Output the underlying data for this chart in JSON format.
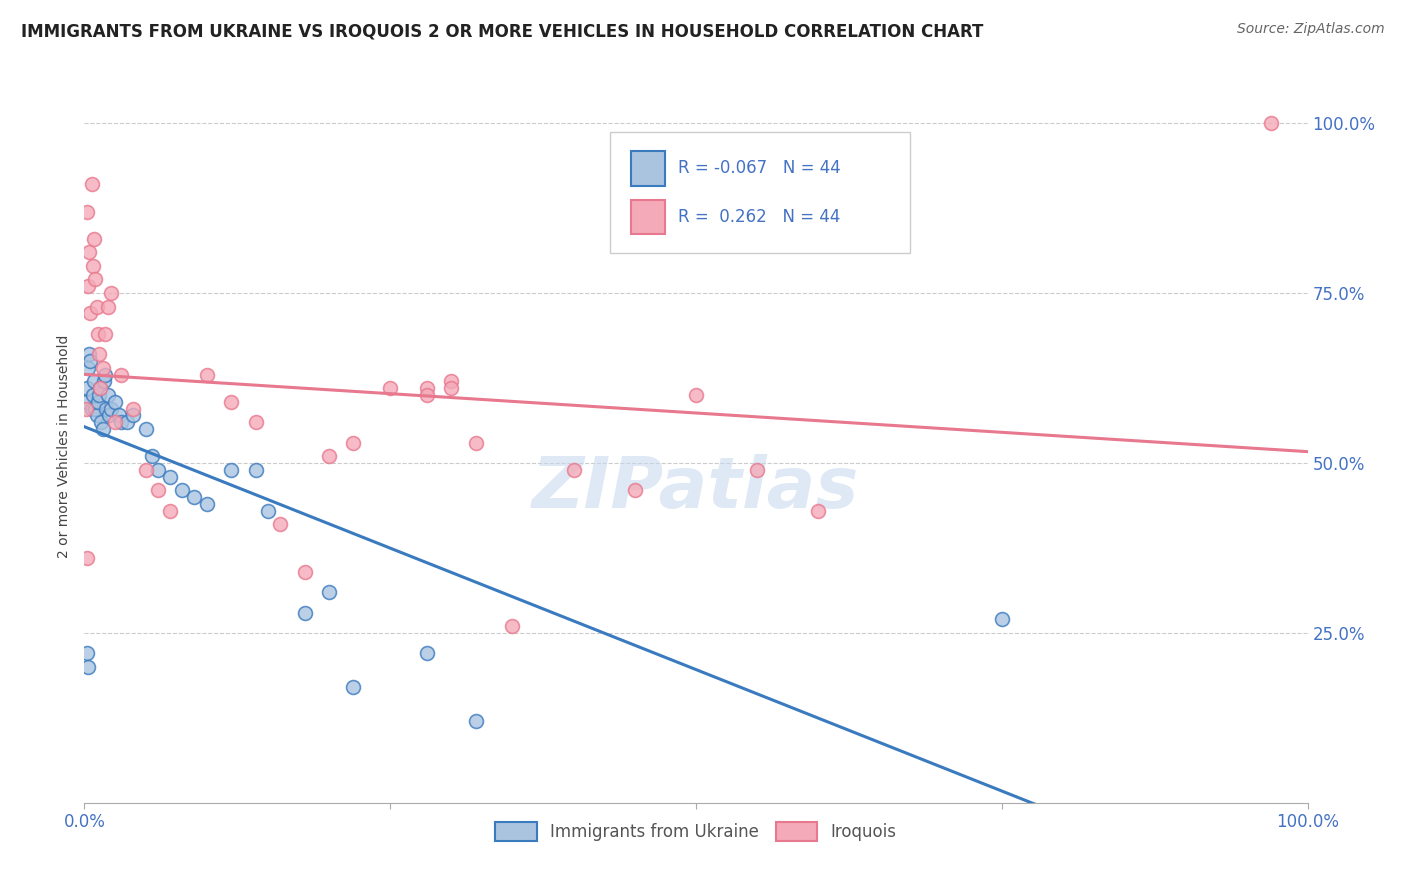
{
  "title": "IMMIGRANTS FROM UKRAINE VS IROQUOIS 2 OR MORE VEHICLES IN HOUSEHOLD CORRELATION CHART",
  "source": "Source: ZipAtlas.com",
  "ylabel": "2 or more Vehicles in Household",
  "watermark": "ZIPatlas",
  "legend_ukraine": "Immigrants from Ukraine",
  "legend_iroquois": "Iroquois",
  "R_ukraine": -0.067,
  "N_ukraine": 44,
  "R_iroquois": 0.262,
  "N_iroquois": 44,
  "ukraine_color": "#aac4e0",
  "iroquois_color": "#f4aab8",
  "ukraine_line_color": "#3a7abf",
  "iroquois_line_color": "#e8788e",
  "ukraine_scatter_x": [
    0.001,
    0.002,
    0.003,
    0.004,
    0.005,
    0.006,
    0.007,
    0.008,
    0.009,
    0.01,
    0.011,
    0.012,
    0.013,
    0.014,
    0.015,
    0.016,
    0.017,
    0.018,
    0.019,
    0.02,
    0.022,
    0.025,
    0.028,
    0.03,
    0.035,
    0.04,
    0.05,
    0.055,
    0.06,
    0.07,
    0.08,
    0.09,
    0.1,
    0.12,
    0.14,
    0.15,
    0.18,
    0.2,
    0.22,
    0.28,
    0.32,
    0.75,
    0.002,
    0.003
  ],
  "ukraine_scatter_y": [
    0.59,
    0.61,
    0.64,
    0.66,
    0.65,
    0.58,
    0.6,
    0.62,
    0.58,
    0.57,
    0.59,
    0.6,
    0.61,
    0.56,
    0.55,
    0.62,
    0.63,
    0.58,
    0.6,
    0.57,
    0.58,
    0.59,
    0.57,
    0.56,
    0.56,
    0.57,
    0.55,
    0.51,
    0.49,
    0.48,
    0.46,
    0.45,
    0.44,
    0.49,
    0.49,
    0.43,
    0.28,
    0.31,
    0.17,
    0.22,
    0.12,
    0.27,
    0.22,
    0.2
  ],
  "iroquois_scatter_x": [
    0.001,
    0.002,
    0.003,
    0.004,
    0.005,
    0.006,
    0.007,
    0.008,
    0.009,
    0.01,
    0.011,
    0.012,
    0.013,
    0.015,
    0.017,
    0.019,
    0.022,
    0.025,
    0.03,
    0.04,
    0.05,
    0.06,
    0.07,
    0.1,
    0.12,
    0.14,
    0.16,
    0.18,
    0.2,
    0.22,
    0.25,
    0.28,
    0.3,
    0.32,
    0.35,
    0.4,
    0.45,
    0.5,
    0.55,
    0.6,
    0.28,
    0.3,
    0.002,
    0.97
  ],
  "iroquois_scatter_y": [
    0.58,
    0.87,
    0.76,
    0.81,
    0.72,
    0.91,
    0.79,
    0.83,
    0.77,
    0.73,
    0.69,
    0.66,
    0.61,
    0.64,
    0.69,
    0.73,
    0.75,
    0.56,
    0.63,
    0.58,
    0.49,
    0.46,
    0.43,
    0.63,
    0.59,
    0.56,
    0.41,
    0.34,
    0.51,
    0.53,
    0.61,
    0.61,
    0.62,
    0.53,
    0.26,
    0.49,
    0.46,
    0.6,
    0.49,
    0.43,
    0.6,
    0.61,
    0.36,
    1.0
  ],
  "xlim": [
    0.0,
    1.0
  ],
  "ylim": [
    0.0,
    1.05
  ],
  "yticks": [
    0.0,
    0.25,
    0.5,
    0.75,
    1.0
  ],
  "ytick_labels_right": [
    "",
    "25.0%",
    "50.0%",
    "75.0%",
    "100.0%"
  ]
}
